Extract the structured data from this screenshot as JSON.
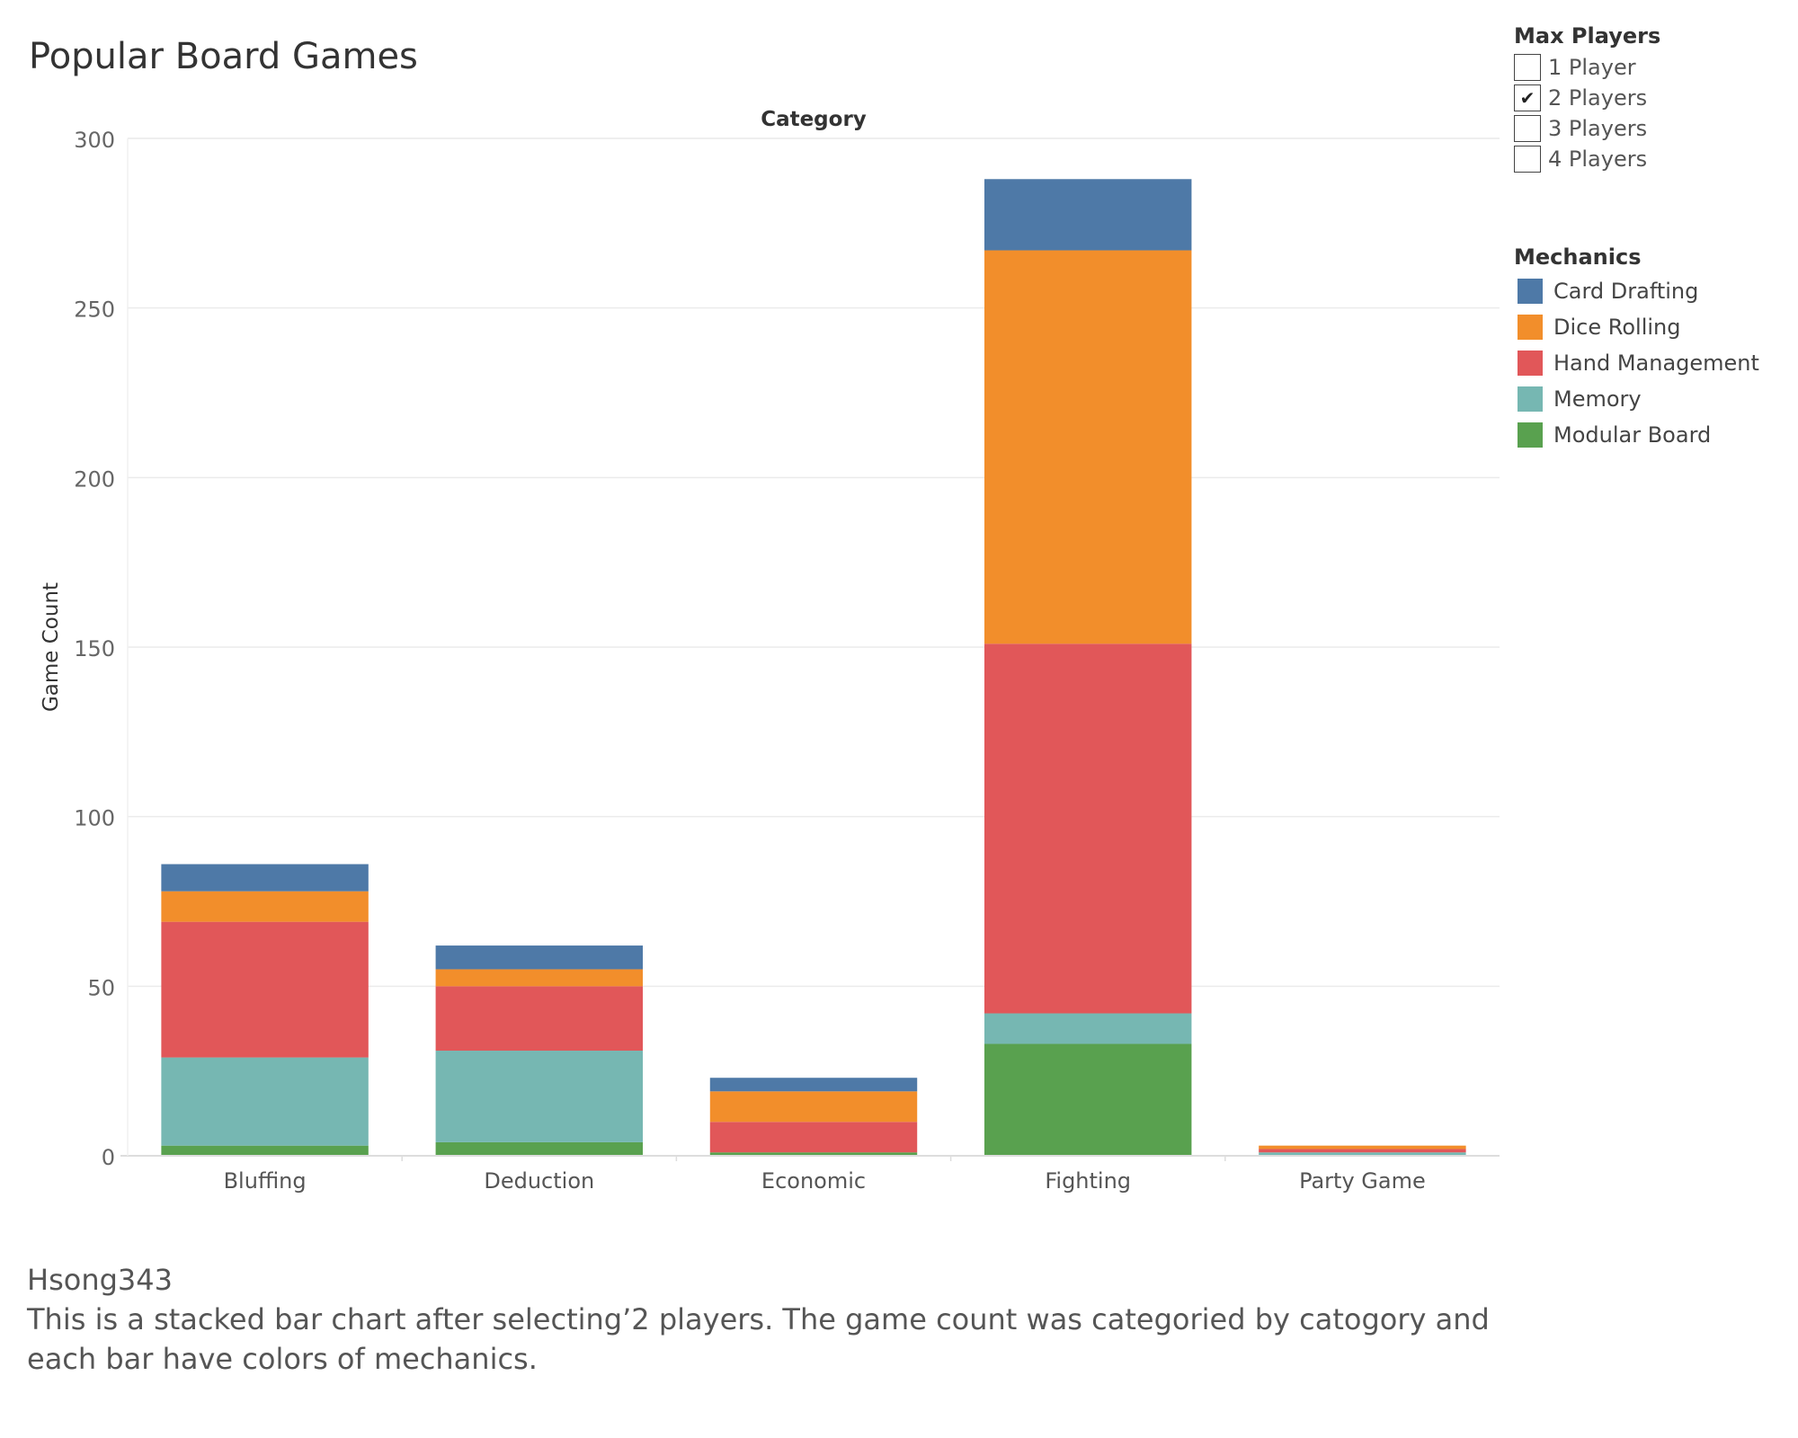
{
  "title": "Popular Board Games",
  "filter": {
    "title": "Max Players",
    "options": [
      {
        "label": "1 Player",
        "checked": false
      },
      {
        "label": "2 Players",
        "checked": true
      },
      {
        "label": "3 Players",
        "checked": false
      },
      {
        "label": "4 Players",
        "checked": false
      }
    ],
    "check_mark": "✔"
  },
  "legend": {
    "title": "Mechanics",
    "items": [
      {
        "label": "Card Drafting",
        "color": "#4e79a7"
      },
      {
        "label": "Dice Rolling",
        "color": "#f28e2b"
      },
      {
        "label": "Hand Management",
        "color": "#e15759"
      },
      {
        "label": "Memory",
        "color": "#76b7b2"
      },
      {
        "label": "Modular Board",
        "color": "#59a14f"
      }
    ]
  },
  "caption": {
    "author": "Hsong343",
    "text": "This is a stacked bar chart after selecting’2 players. The game count was categoried by catogory and each bar have colors of mechanics."
  },
  "chart_data": {
    "type": "bar",
    "stacked": true,
    "title": "Popular Board Games",
    "column_header": "Category",
    "ylabel": "Game Count",
    "xlabel": "",
    "ylim": [
      0,
      300
    ],
    "yticks": [
      0,
      50,
      100,
      150,
      200,
      250,
      300
    ],
    "grid": true,
    "categories": [
      "Bluffing",
      "Deduction",
      "Economic",
      "Fighting",
      "Party Game"
    ],
    "series": [
      {
        "name": "Modular Board",
        "color": "#59a14f",
        "values": [
          3,
          4,
          1,
          33,
          0
        ]
      },
      {
        "name": "Memory",
        "color": "#76b7b2",
        "values": [
          26,
          27,
          0,
          9,
          1
        ]
      },
      {
        "name": "Hand Management",
        "color": "#e15759",
        "values": [
          40,
          19,
          9,
          109,
          1
        ]
      },
      {
        "name": "Dice Rolling",
        "color": "#f28e2b",
        "values": [
          9,
          5,
          9,
          116,
          1
        ]
      },
      {
        "name": "Card Drafting",
        "color": "#4e79a7",
        "values": [
          8,
          7,
          4,
          21,
          0
        ]
      }
    ]
  }
}
